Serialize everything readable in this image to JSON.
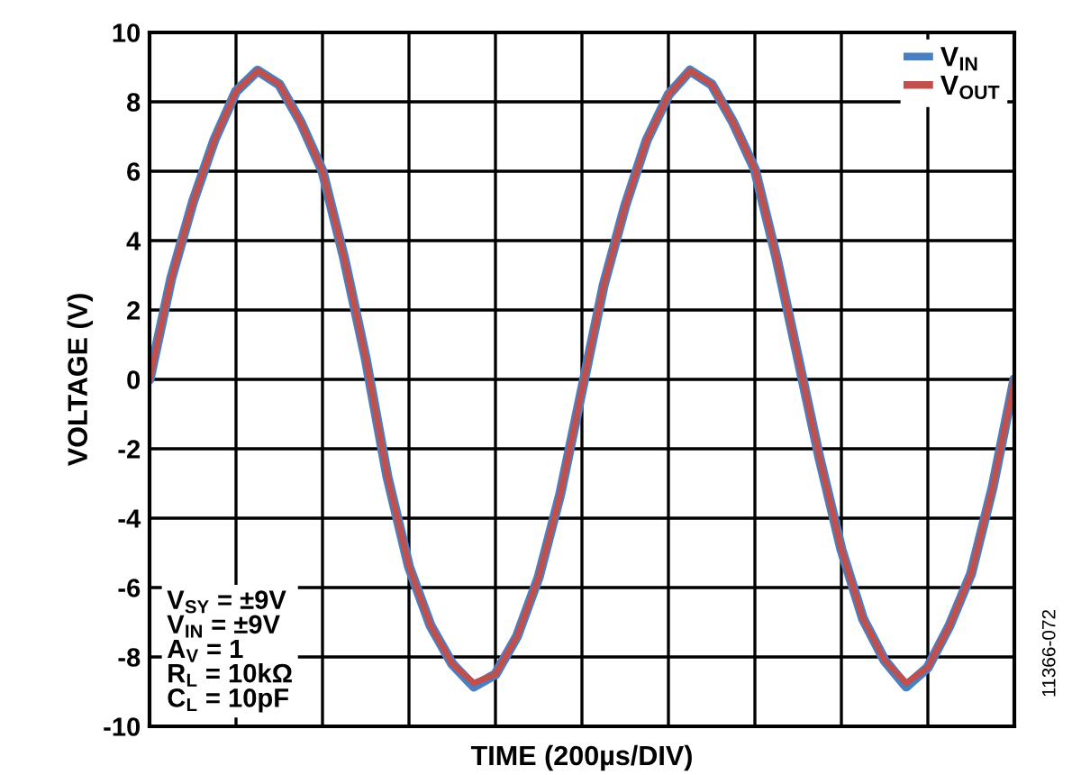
{
  "chart_data": {
    "type": "line",
    "xlabel": "TIME (200µs/DIV)",
    "ylabel": "VOLTAGE (V)",
    "categories": [
      null,
      null,
      null,
      null,
      null,
      null,
      null,
      null,
      null,
      null,
      null,
      null,
      null,
      null,
      null,
      null,
      null,
      null,
      null,
      null,
      null,
      null,
      null,
      null,
      null,
      null,
      null,
      null,
      null,
      null,
      null,
      null,
      null,
      null,
      null,
      null,
      null,
      null,
      null,
      null,
      null
    ],
    "ylim": [
      -10,
      10
    ],
    "yticks": [
      -10,
      -8,
      -6,
      -4,
      -2,
      0,
      2,
      4,
      6,
      8,
      10
    ],
    "grid": true,
    "legend": "top right",
    "series": [
      {
        "name": "V$_{IN}$",
        "color": "#4a7fc1",
        "values": [
          0,
          2.9,
          5.1,
          6.9,
          8.3,
          8.9,
          8.5,
          7.4,
          6,
          3.5,
          0.6,
          -2.8,
          -5.4,
          -7.1,
          -8.2,
          -8.85,
          -8.5,
          -7.4,
          -5.7,
          -3.3,
          -0.3,
          2.7,
          5,
          6.9,
          8.2,
          8.9,
          8.5,
          7.4,
          6.05,
          3.5,
          0.6,
          -2.3,
          -4.9,
          -6.9,
          -8.1,
          -8.85,
          -8.3,
          -7.1,
          -5.6,
          -3.1,
          0
        ]
      },
      {
        "name": "V$_{OUT}$",
        "color": "#c0504d",
        "values": [
          0,
          2.9,
          5.1,
          6.9,
          8.3,
          8.9,
          8.5,
          7.4,
          6,
          3.5,
          0.6,
          -2.8,
          -5.4,
          -7.1,
          -8.2,
          -8.75,
          -8.5,
          -7.4,
          -5.7,
          -3.3,
          -0.3,
          2.7,
          5,
          6.9,
          8.2,
          8.9,
          8.5,
          7.4,
          6.05,
          3.5,
          0.6,
          -2.3,
          -4.9,
          -6.9,
          -8.1,
          -8.75,
          -8.3,
          -7.1,
          -5.6,
          -3.1,
          0
        ]
      }
    ],
    "annotations": [
      "V$_{SY}$ = ±9V",
      "V$_{IN}$ = ±9V",
      "A$_{V}$ = 1",
      "R$_{L}$ = 10kΩ",
      "C$_{L}$ = 10pF",
      "11366-072"
    ]
  }
}
